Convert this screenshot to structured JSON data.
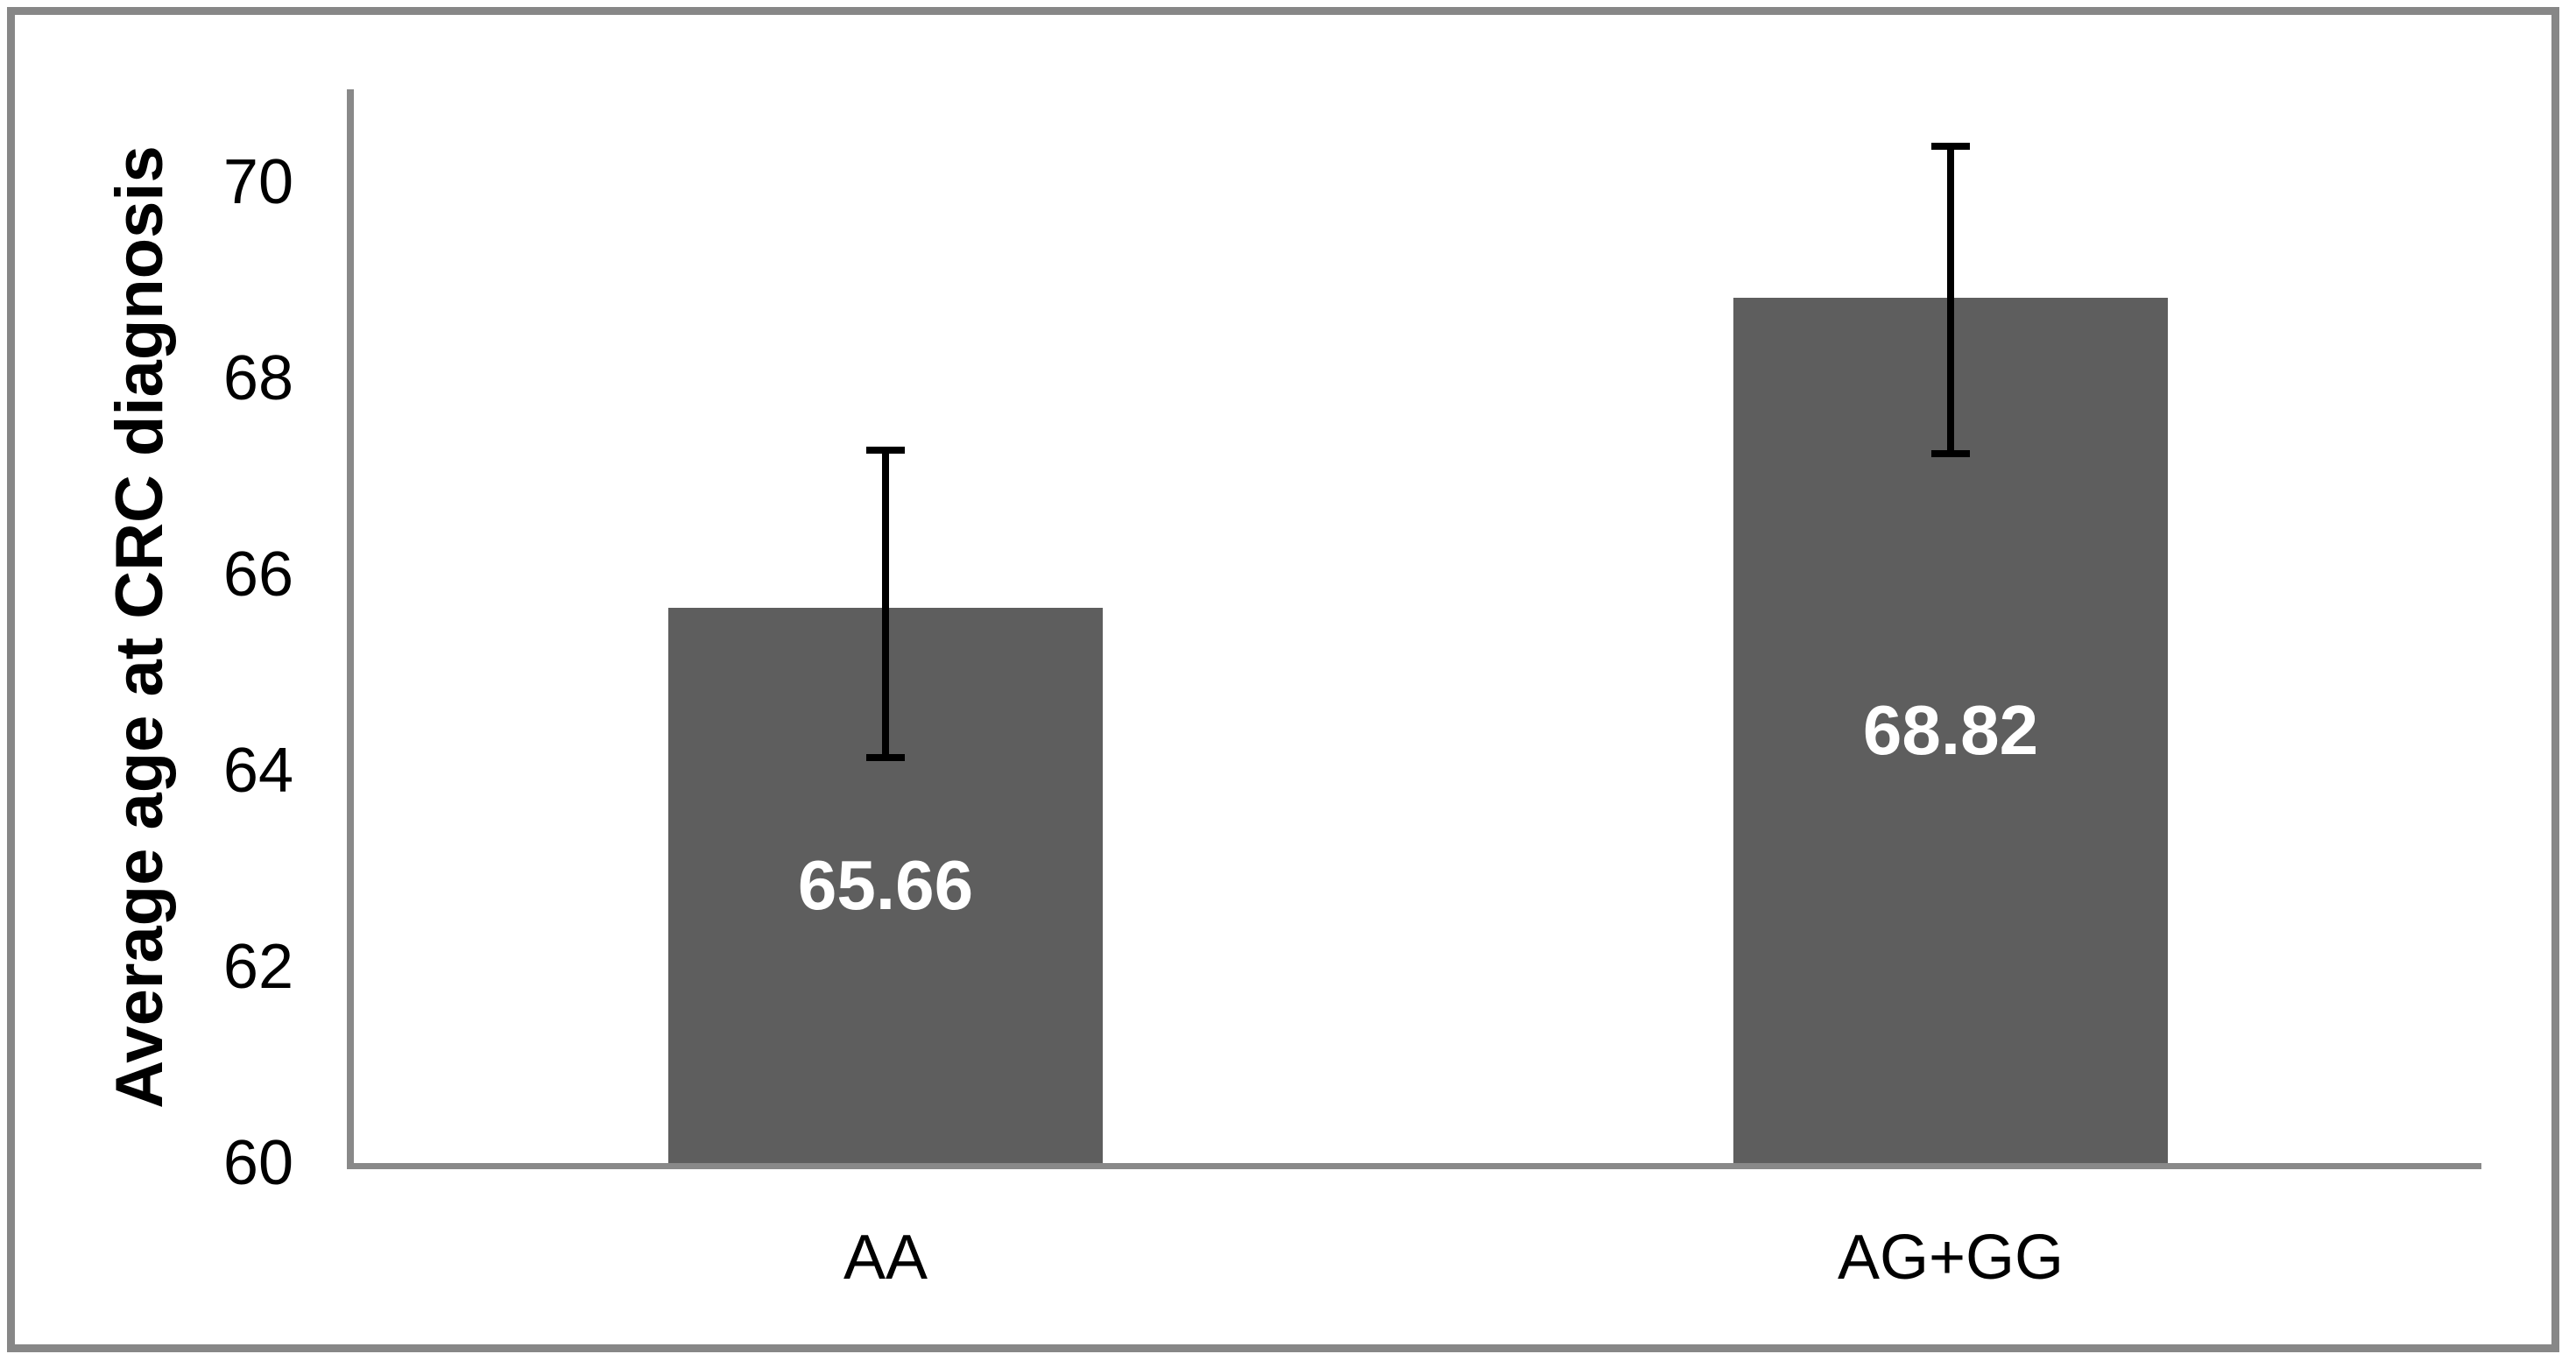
{
  "chart_data": {
    "type": "bar",
    "title": "",
    "ylabel": "Average age at CRC diagnosis",
    "xlabel": "",
    "categories": [
      "AA",
      "AG+GG"
    ],
    "values": [
      65.66,
      68.82
    ],
    "value_labels": [
      "65.66",
      "68.82"
    ],
    "error_bars": {
      "lower": [
        64.1,
        67.2
      ],
      "upper": [
        67.3,
        70.4
      ]
    },
    "ylim": [
      60,
      71
    ],
    "yticks": [
      60,
      62,
      64,
      66,
      68,
      70
    ],
    "grid": false,
    "legend": false,
    "colors": {
      "bar_fill": "#5e5e5e",
      "value_label": "#ffffff",
      "error_bar": "#000000",
      "axis_line": "#898989",
      "frame_border": "#878787",
      "text": "#000000",
      "background": "#ffffff"
    }
  }
}
